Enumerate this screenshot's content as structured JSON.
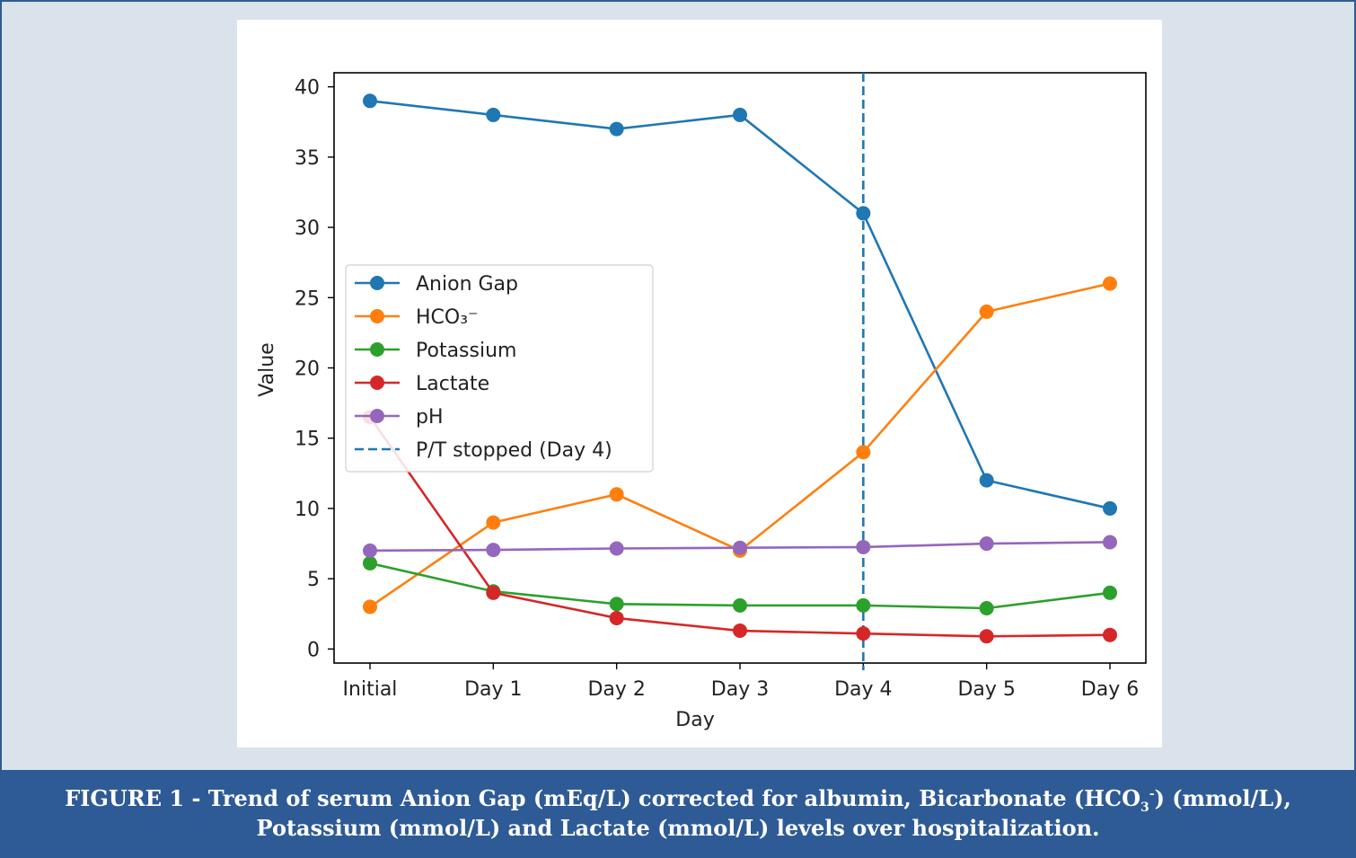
{
  "caption": {
    "label": "FIGURE 1",
    "line1_a": "Trend of serum Anion Gap (mEq/L) corrected for albumin, Bicarbonate (HCO",
    "line1_sub": "3",
    "line1_sup": "-",
    "line1_b": ") (mmol/L),",
    "line2": "Potassium (mmol/L) and Lactate (mmol/L) levels over hospitalization."
  },
  "chart_data": {
    "type": "line",
    "title": "",
    "xlabel": "Day",
    "ylabel": "Value",
    "categories": [
      "Initial",
      "Day 1",
      "Day 2",
      "Day 3",
      "Day 4",
      "Day 5",
      "Day 6"
    ],
    "ylim": [
      -1,
      41
    ],
    "yticks": [
      0,
      5,
      10,
      15,
      20,
      25,
      30,
      35,
      40
    ],
    "grid": false,
    "legend_position": "center-left",
    "series": [
      {
        "name": "Anion Gap",
        "color": "#1f77b4",
        "values": [
          39,
          38,
          37,
          38,
          31,
          12,
          10
        ]
      },
      {
        "name": "HCO₃⁻",
        "color": "#ff7f0e",
        "values": [
          3,
          9,
          11,
          7,
          14,
          24,
          26
        ]
      },
      {
        "name": "Potassium",
        "color": "#2ca02c",
        "values": [
          6.1,
          4.1,
          3.2,
          3.1,
          3.1,
          2.9,
          4.0
        ]
      },
      {
        "name": "Lactate",
        "color": "#d62728",
        "values": [
          16.5,
          4.0,
          2.2,
          1.3,
          1.1,
          0.9,
          1.0
        ]
      },
      {
        "name": "pH",
        "color": "#9467bd",
        "values": [
          7.0,
          7.05,
          7.15,
          7.2,
          7.25,
          7.5,
          7.6
        ]
      }
    ],
    "reference_line": {
      "name": "P/T stopped (Day 4)",
      "at": "Day 4",
      "color": "#1f77b4",
      "style": "dashed"
    }
  }
}
